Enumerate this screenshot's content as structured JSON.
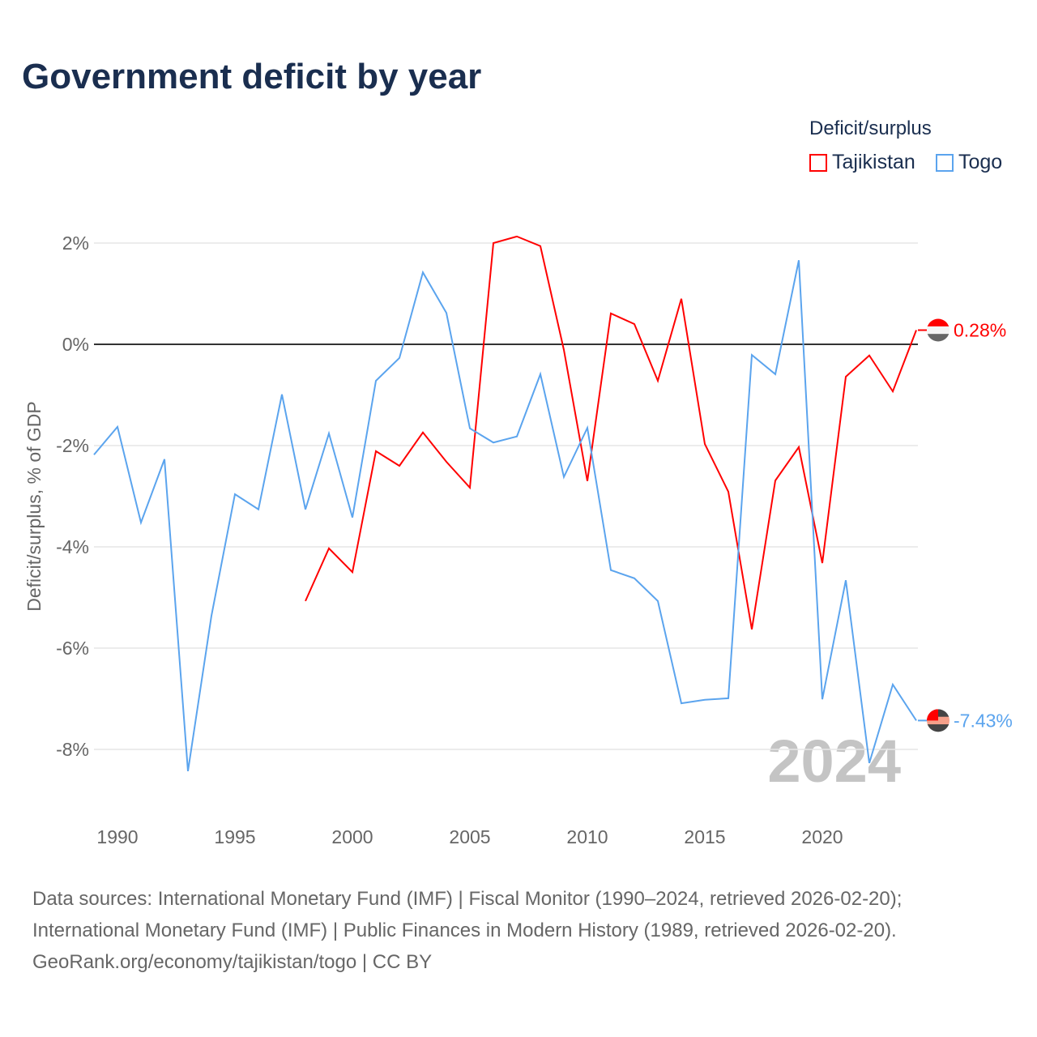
{
  "title": "Government deficit by year",
  "legend": {
    "title": "Deficit/surplus",
    "items": [
      {
        "name": "Tajikistan",
        "color": "#ff0000"
      },
      {
        "name": "Togo",
        "color": "#5ba4ee"
      }
    ]
  },
  "year_watermark": "2024",
  "end_labels": {
    "tajikistan": "0.28%",
    "togo": "-7.43%"
  },
  "source": [
    "Data sources: International Monetary Fund (IMF) | Fiscal Monitor (1990–2024, retrieved 2026-02-20);",
    "International Monetary Fund (IMF) | Public Finances in Modern History (1989, retrieved 2026-02-20).",
    "GeoRank.org/economy/tajikistan/togo | CC BY"
  ],
  "chart_data": {
    "type": "line",
    "title": "Government deficit by year",
    "ylabel": "Deficit/surplus, % of GDP",
    "xlabel": "",
    "xlim": [
      1989,
      2024
    ],
    "ylim": [
      -9,
      3
    ],
    "yticks": [
      2,
      0,
      -2,
      -4,
      -6,
      -8
    ],
    "ytick_labels": [
      "2%",
      "0%",
      "-2%",
      "-4%",
      "-6%",
      "-8%"
    ],
    "xticks": [
      1990,
      1995,
      2000,
      2005,
      2010,
      2015,
      2020
    ],
    "xtick_labels": [
      "1990",
      "1995",
      "2000",
      "2005",
      "2010",
      "2015",
      "2020"
    ],
    "grid": true,
    "legend_position": "top-right",
    "series": [
      {
        "name": "Tajikistan",
        "color": "#ff0000",
        "x": [
          1998,
          1999,
          2000,
          2001,
          2002,
          2003,
          2004,
          2005,
          2006,
          2007,
          2008,
          2009,
          2010,
          2011,
          2012,
          2013,
          2014,
          2015,
          2016,
          2017,
          2018,
          2019,
          2020,
          2021,
          2022,
          2023,
          2024
        ],
        "values": [
          -5.07,
          -4.03,
          -4.5,
          -2.11,
          -2.4,
          -1.74,
          -2.32,
          -2.83,
          2.0,
          2.13,
          1.94,
          -0.11,
          -2.7,
          0.61,
          0.4,
          -0.72,
          0.9,
          -1.97,
          -2.91,
          -5.63,
          -2.69,
          -2.03,
          -4.32,
          -0.64,
          -0.22,
          -0.93,
          0.28
        ]
      },
      {
        "name": "Togo",
        "color": "#5ba4ee",
        "x": [
          1989,
          1990,
          1991,
          1992,
          1993,
          1994,
          1995,
          1996,
          1997,
          1998,
          1999,
          2000,
          2001,
          2002,
          2003,
          2004,
          2005,
          2006,
          2007,
          2008,
          2009,
          2010,
          2011,
          2012,
          2013,
          2014,
          2015,
          2016,
          2017,
          2018,
          2019,
          2020,
          2021,
          2022,
          2023,
          2024
        ],
        "values": [
          -2.18,
          -1.63,
          -3.52,
          -2.27,
          -8.43,
          -5.36,
          -2.96,
          -3.26,
          -0.99,
          -3.26,
          -1.76,
          -3.42,
          -0.72,
          -0.27,
          1.42,
          0.62,
          -1.66,
          -1.94,
          -1.82,
          -0.59,
          -2.62,
          -1.65,
          -4.46,
          -4.62,
          -5.07,
          -7.09,
          -7.02,
          -6.99,
          -0.21,
          -0.59,
          1.66,
          -7.01,
          -4.66,
          -8.27,
          -6.72,
          -7.43
        ]
      }
    ]
  }
}
